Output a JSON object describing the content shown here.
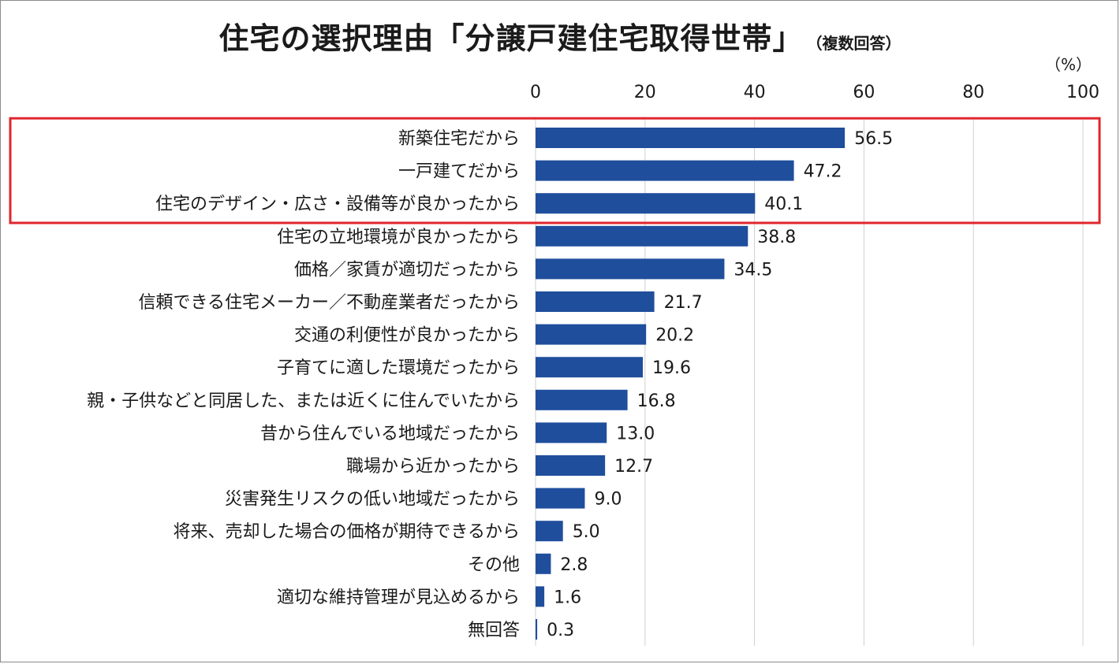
{
  "title": "住宅の選択理由「分譲戸建住宅取得世帯」",
  "note": "（複数回答）",
  "unit": "（%）",
  "colors": {
    "bar": "#1f4e9c",
    "highlight": "#e0262e",
    "grid": "#d0d0d0"
  },
  "chart_data": {
    "type": "bar",
    "orientation": "horizontal",
    "title": "住宅の選択理由「分譲戸建住宅取得世帯」",
    "xlabel": "",
    "ylabel": "",
    "xlim": [
      0,
      100
    ],
    "x_ticks": [
      0,
      20,
      40,
      60,
      80,
      100
    ],
    "grid": true,
    "categories": [
      "新築住宅だから",
      "一戸建てだから",
      "住宅のデザイン・広さ・設備等が良かったから",
      "住宅の立地環境が良かったから",
      "価格／家賃が適切だったから",
      "信頼できる住宅メーカー／不動産業者だったから",
      "交通の利便性が良かったから",
      "子育てに適した環境だったから",
      "親・子供などと同居した、または近くに住んでいたから",
      "昔から住んでいる地域だったから",
      "職場から近かったから",
      "災害発生リスクの低い地域だったから",
      "将来、売却した場合の価格が期待できるから",
      "その他",
      "適切な維持管理が見込めるから",
      "無回答"
    ],
    "values": [
      56.5,
      47.2,
      40.1,
      38.8,
      34.5,
      21.7,
      20.2,
      19.6,
      16.8,
      13.0,
      12.7,
      9.0,
      5.0,
      2.8,
      1.6,
      0.3
    ],
    "value_labels": [
      "56.5",
      "47.2",
      "40.1",
      "38.8",
      "34.5",
      "21.7",
      "20.2",
      "19.6",
      "16.8",
      "13.0",
      "12.7",
      "9.0",
      "5.0",
      "2.8",
      "1.6",
      "0.3"
    ],
    "highlighted_categories": 3
  }
}
